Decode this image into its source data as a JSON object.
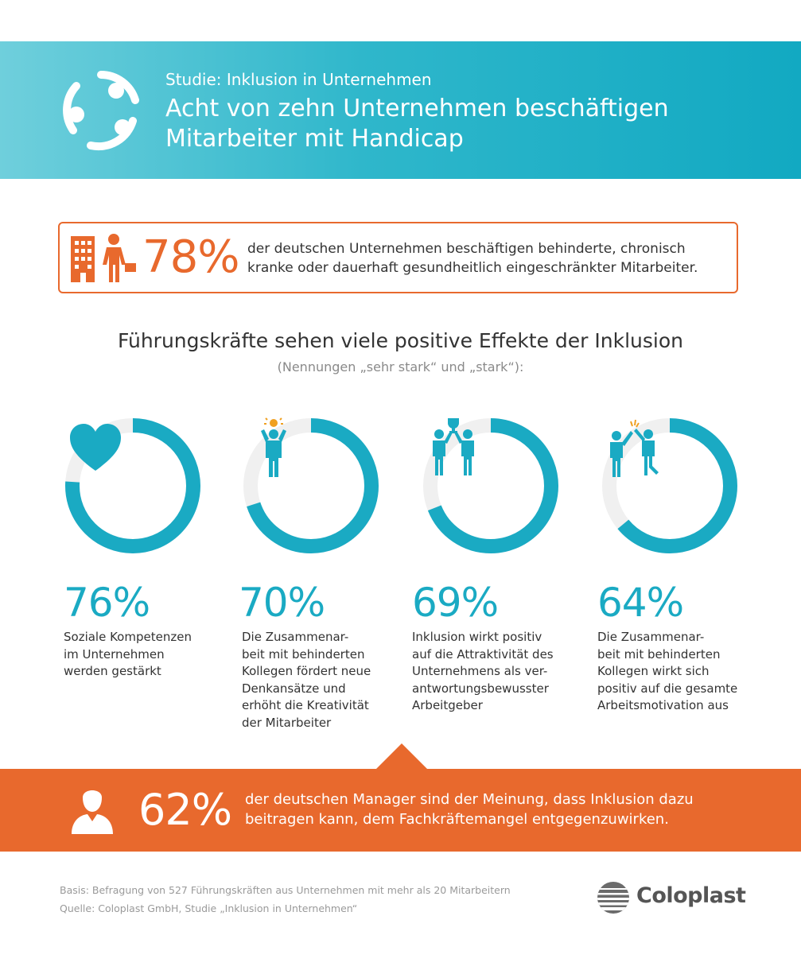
{
  "header": {
    "subtitle": "Studie: Inklusion in Unternehmen",
    "title": "Acht von zehn Unternehmen beschäftigen Mitarbeiter mit Handicap",
    "logo_icon": "people-circle-icon"
  },
  "highlight_box": {
    "percent": "78%",
    "text": "der deutschen Unternehmen beschäftigen behinderte, chronisch kranke oder dauerhaft gesundheitlich eingeschränkter Mitarbeiter.",
    "icon": "building-person-icon"
  },
  "section": {
    "title": "Führungskräfte sehen viele positive Effekte der Inklusion",
    "subtitle": "(Nennungen „sehr stark“ und „stark“):"
  },
  "chart_data": {
    "type": "pie",
    "unit": "%",
    "categories": [
      "Soziale Kompetenzen im Unternehmen werden gestärkt",
      "Die Zusammenarbeit mit behinderten Kollegen fördert neue Denkansätze und erhöht die Kreativität der Mitarbeiter",
      "Inklusion wirkt positiv auf die Attraktivität des Unternehmens als verantwortungsbewusster Arbeitgeber",
      "Die Zusammenarbeit mit behinderten Kollegen wirkt sich positiv auf die gesamte Arbeitsmotivation aus"
    ],
    "values": [
      76,
      70,
      69,
      64
    ],
    "labels": [
      "76%",
      "70%",
      "69%",
      "64%"
    ],
    "descriptions": [
      [
        "Soziale Kompetenzen",
        "im Unternehmen",
        "werden gestärkt"
      ],
      [
        "Die Zusammenar-",
        "beit mit behinderten",
        "Kollegen fördert neue",
        "Denkansätze und",
        "erhöht die Kreativität",
        "der Mitarbeiter"
      ],
      [
        "Inklusion wirkt positiv",
        "auf die Attraktivität des",
        "Unternehmens als ver-",
        "antwortungsbewusster",
        "Arbeitgeber"
      ],
      [
        "Die Zusammenar-",
        "beit mit behinderten",
        "Kollegen wirkt sich",
        "positiv auf die gesamte",
        "Arbeitsmotivation aus"
      ]
    ],
    "icons": [
      "heart-icon",
      "idea-person-icon",
      "trophy-team-icon",
      "high-five-icon"
    ],
    "colors": {
      "filled": "#1aaac3",
      "track": "#f0f0f0"
    }
  },
  "banner": {
    "percent": "62%",
    "text": "der deutschen Manager sind der Meinung, dass Inklusion dazu beitragen kann, dem Fachkräftemangel entgegenzuwirken.",
    "icon": "manager-icon"
  },
  "footer": {
    "basis": "Basis: Befragung von 527 Führungskräften aus Unternehmen mit mehr als 20 Mitarbeitern",
    "source": "Quelle: Coloplast GmbH, Studie „Inklusion in Unternehmen“"
  },
  "brand": {
    "name": "Coloplast",
    "logo_icon": "coloplast-logo-icon"
  },
  "colors": {
    "teal": "#1aaac3",
    "orange": "#e8692d",
    "text": "#333333",
    "muted": "#8a8a8a"
  }
}
